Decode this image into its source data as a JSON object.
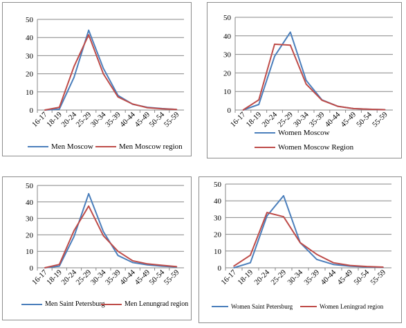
{
  "colors": {
    "series1": "#4a7ebb",
    "series2": "#be4b48",
    "grid": "#868686",
    "axis": "#868686"
  },
  "chart_data": [
    {
      "type": "line",
      "categories": [
        "16-17",
        "18-19",
        "20-24",
        "25-29",
        "30-34",
        "35-39",
        "40-44",
        "45-49",
        "50-54",
        "55-59"
      ],
      "ylim": [
        0,
        50
      ],
      "yticks": [
        0,
        10,
        20,
        30,
        40,
        50
      ],
      "grid": true,
      "legend": "bottom",
      "series": [
        {
          "name": "Men Moscow",
          "values": [
            0,
            0.5,
            18,
            44,
            23,
            8,
            3.2,
            1.5,
            0.8,
            0.3
          ]
        },
        {
          "name": "Men Moscow region",
          "values": [
            0,
            1.5,
            24,
            41.5,
            20,
            7.2,
            3.3,
            1.3,
            0.7,
            0.3
          ]
        }
      ]
    },
    {
      "type": "line",
      "categories": [
        "16-17",
        "18-19",
        "20-24",
        "25-29",
        "30-34",
        "35-39",
        "40-44",
        "45-49",
        "50-54",
        "55-59"
      ],
      "ylim": [
        0,
        50
      ],
      "yticks": [
        0,
        10,
        20,
        30,
        40,
        50
      ],
      "grid": true,
      "legend": "bottom",
      "series": [
        {
          "name": "Women Moscow",
          "values": [
            0,
            3,
            29,
            42,
            16,
            5.5,
            2,
            0.8,
            0.4,
            0.2
          ]
        },
        {
          "name": "Women Moscow Region",
          "values": [
            0,
            5.5,
            35.5,
            35,
            14,
            5.3,
            2,
            0.8,
            0.4,
            0.2
          ]
        }
      ]
    },
    {
      "type": "line",
      "categories": [
        "16-17",
        "18-19",
        "20-24",
        "25-29",
        "30-34",
        "35-39",
        "40-44",
        "45-49",
        "50-54",
        "55-59"
      ],
      "ylim": [
        0,
        50
      ],
      "yticks": [
        0,
        10,
        20,
        30,
        40,
        50
      ],
      "grid": true,
      "legend": "bottom",
      "series": [
        {
          "name": "Men Saint Petersburg",
          "values": [
            0,
            1,
            19,
            45,
            22,
            7.5,
            3.2,
            1.8,
            1,
            0.5
          ]
        },
        {
          "name": "Men Lenungrad region",
          "values": [
            0,
            2,
            22.5,
            37.5,
            19.5,
            10,
            4.3,
            2.4,
            1.5,
            0.7
          ]
        }
      ]
    },
    {
      "type": "line",
      "categories": [
        "16-17",
        "18-19",
        "20-24",
        "25-29",
        "30-34",
        "35-39",
        "40-44",
        "45-49",
        "50-54",
        "55-59"
      ],
      "ylim": [
        0,
        50
      ],
      "yticks": [
        0,
        10,
        20,
        30,
        40,
        50
      ],
      "grid": true,
      "legend": "bottom",
      "series": [
        {
          "name": "Women Saint Petersburg",
          "values": [
            0,
            3,
            31,
            43,
            15,
            5,
            2,
            1,
            0.5,
            0.3
          ]
        },
        {
          "name": "Women Leningrad region",
          "values": [
            1,
            7.5,
            33,
            30.5,
            15,
            8,
            3,
            1.4,
            0.8,
            0.4
          ]
        }
      ]
    }
  ]
}
